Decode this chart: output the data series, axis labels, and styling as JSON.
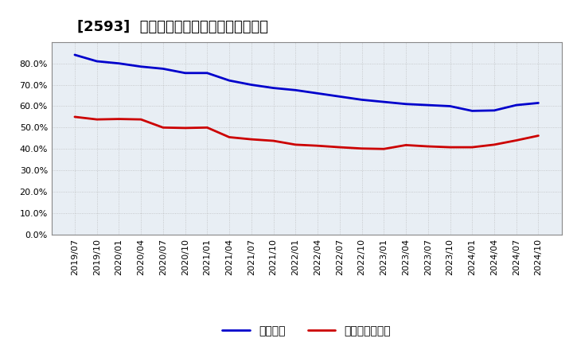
{
  "title": "[2593]  固定比率、固定長期適合率の推移",
  "x_labels": [
    "2019/07",
    "2019/10",
    "2020/01",
    "2020/04",
    "2020/07",
    "2020/10",
    "2021/01",
    "2021/04",
    "2021/07",
    "2021/10",
    "2022/01",
    "2022/04",
    "2022/07",
    "2022/10",
    "2023/01",
    "2023/04",
    "2023/07",
    "2023/10",
    "2024/01",
    "2024/04",
    "2024/07",
    "2024/10"
  ],
  "fixed_ratio": [
    0.84,
    0.81,
    0.8,
    0.785,
    0.775,
    0.755,
    0.755,
    0.72,
    0.7,
    0.685,
    0.675,
    0.66,
    0.645,
    0.63,
    0.62,
    0.61,
    0.605,
    0.6,
    0.578,
    0.58,
    0.605,
    0.615
  ],
  "fixed_longterm_ratio": [
    0.55,
    0.538,
    0.54,
    0.538,
    0.5,
    0.498,
    0.5,
    0.455,
    0.445,
    0.438,
    0.42,
    0.415,
    0.408,
    0.402,
    0.4,
    0.418,
    0.412,
    0.408,
    0.408,
    0.42,
    0.44,
    0.462
  ],
  "line_color_fixed": "#0000cc",
  "line_color_longterm": "#cc0000",
  "ylim": [
    0.0,
    0.9
  ],
  "yticks": [
    0.0,
    0.1,
    0.2,
    0.3,
    0.4,
    0.5,
    0.6,
    0.7,
    0.8
  ],
  "legend_fixed": "固定比率",
  "legend_longterm": "固定長期適合率",
  "bg_color": "#ffffff",
  "plot_bg_color": "#e8eef4",
  "grid_color": "#aaaaaa",
  "title_fontsize": 13,
  "axis_fontsize": 8,
  "legend_fontsize": 10
}
